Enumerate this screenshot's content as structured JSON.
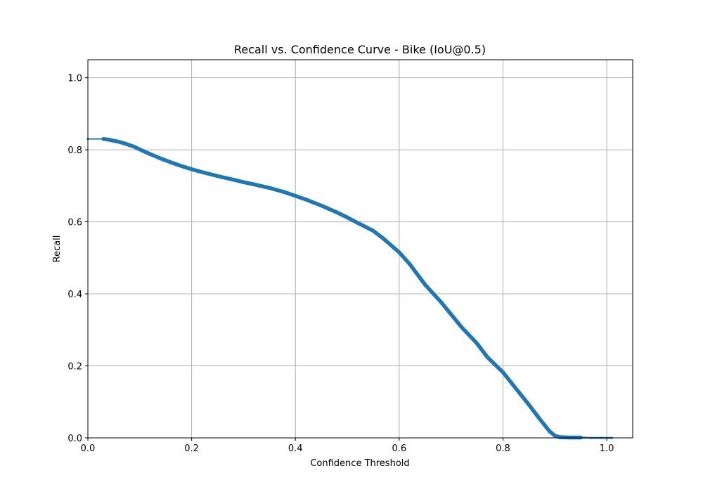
{
  "chart_data": {
    "type": "line",
    "title": "Recall vs. Confidence Curve - Bike (IoU@0.5)",
    "xlabel": "Confidence Threshold",
    "ylabel": "Recall",
    "xlim": [
      0.0,
      1.05
    ],
    "ylim": [
      0.0,
      1.05
    ],
    "xticks": [
      "0.0",
      "0.2",
      "0.4",
      "0.6",
      "0.8",
      "1.0"
    ],
    "yticks": [
      "0.0",
      "0.2",
      "0.4",
      "0.6",
      "0.8",
      "1.0"
    ],
    "grid": true,
    "legend": "none",
    "series_color": "#1f77b4",
    "series": [
      {
        "x": [
          0.0,
          0.03,
          0.04,
          0.05,
          0.06,
          0.07,
          0.08,
          0.09,
          0.1,
          0.12,
          0.14,
          0.16,
          0.18,
          0.2,
          0.22,
          0.25,
          0.28,
          0.3,
          0.32,
          0.35,
          0.38,
          0.4,
          0.42,
          0.45,
          0.48,
          0.5,
          0.52,
          0.55,
          0.57,
          0.6,
          0.62,
          0.65,
          0.68,
          0.7,
          0.72,
          0.75,
          0.77,
          0.8,
          0.82,
          0.85,
          0.87,
          0.89,
          0.9,
          0.91,
          0.93,
          0.95,
          0.97,
          0.99,
          1.01
        ],
        "y": [
          0.83,
          0.83,
          0.828,
          0.825,
          0.822,
          0.818,
          0.813,
          0.808,
          0.801,
          0.788,
          0.776,
          0.765,
          0.755,
          0.746,
          0.738,
          0.727,
          0.717,
          0.71,
          0.704,
          0.694,
          0.682,
          0.672,
          0.662,
          0.645,
          0.626,
          0.612,
          0.597,
          0.575,
          0.553,
          0.515,
          0.483,
          0.425,
          0.378,
          0.343,
          0.308,
          0.262,
          0.224,
          0.182,
          0.146,
          0.092,
          0.054,
          0.018,
          0.006,
          0.002,
          0.001,
          0.001,
          0.0,
          0.0,
          0.0
        ]
      }
    ]
  }
}
